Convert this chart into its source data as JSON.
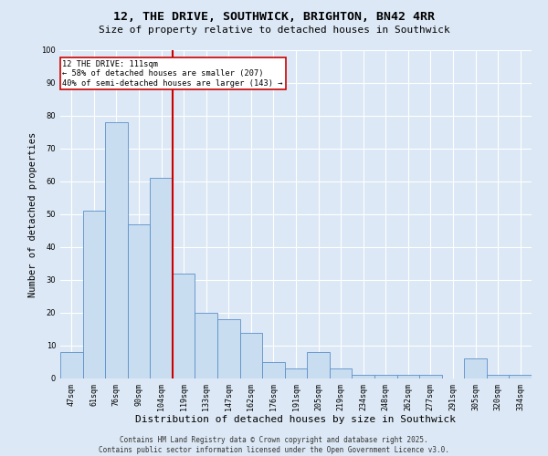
{
  "title": "12, THE DRIVE, SOUTHWICK, BRIGHTON, BN42 4RR",
  "subtitle": "Size of property relative to detached houses in Southwick",
  "xlabel": "Distribution of detached houses by size in Southwick",
  "ylabel": "Number of detached properties",
  "categories": [
    "47sqm",
    "61sqm",
    "76sqm",
    "90sqm",
    "104sqm",
    "119sqm",
    "133sqm",
    "147sqm",
    "162sqm",
    "176sqm",
    "191sqm",
    "205sqm",
    "219sqm",
    "234sqm",
    "248sqm",
    "262sqm",
    "277sqm",
    "291sqm",
    "305sqm",
    "320sqm",
    "334sqm"
  ],
  "values": [
    8,
    51,
    78,
    47,
    61,
    32,
    20,
    18,
    14,
    5,
    3,
    8,
    3,
    1,
    1,
    1,
    1,
    0,
    6,
    1,
    1
  ],
  "bar_color": "#c9ddf0",
  "bar_edge_color": "#5b8fc9",
  "red_line_x": 4.5,
  "red_line_label": "12 THE DRIVE: 111sqm",
  "annotation_line1": "← 58% of detached houses are smaller (207)",
  "annotation_line2": "40% of semi-detached houses are larger (143) →",
  "annotation_box_color": "#ffffff",
  "annotation_box_edge": "#cc0000",
  "ylim": [
    0,
    100
  ],
  "yticks": [
    0,
    10,
    20,
    30,
    40,
    50,
    60,
    70,
    80,
    90,
    100
  ],
  "fig_bg_color": "#dce8f5",
  "plot_bg_color": "#dce8f5",
  "grid_color": "#ffffff",
  "footer_line1": "Contains HM Land Registry data © Crown copyright and database right 2025.",
  "footer_line2": "Contains public sector information licensed under the Open Government Licence v3.0.",
  "title_fontsize": 9.5,
  "subtitle_fontsize": 8,
  "tick_fontsize": 6,
  "ylabel_fontsize": 7.5,
  "xlabel_fontsize": 8,
  "footer_fontsize": 5.5,
  "annotation_fontsize": 6.2
}
